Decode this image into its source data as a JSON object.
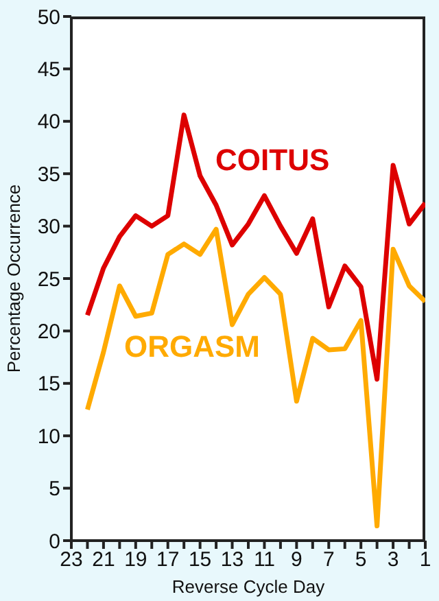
{
  "chart_data": {
    "type": "line",
    "xlabel": "Reverse Cycle Day",
    "ylabel": "Percentage Occurrence",
    "x": [
      22,
      21,
      20,
      19,
      18,
      17,
      16,
      15,
      14,
      13,
      12,
      11,
      10,
      9,
      8,
      7,
      6,
      5,
      4,
      3,
      2,
      1
    ],
    "series": [
      {
        "name": "COITUS",
        "color": "#dd0000",
        "values": [
          21.5,
          26,
          29,
          31,
          30,
          31,
          40.6,
          34.8,
          32,
          28.2,
          30.2,
          32.9,
          30,
          27.4,
          30.7,
          22.3,
          26.2,
          24.2,
          15.4,
          35.8,
          30.2,
          32.2
        ]
      },
      {
        "name": "ORGASM",
        "color": "#ffaa00",
        "values": [
          12.5,
          18,
          24.3,
          21.4,
          21.7,
          27.3,
          28.3,
          27.3,
          29.7,
          20.6,
          23.5,
          25.1,
          23.5,
          13.3,
          19.3,
          18.2,
          18.3,
          21,
          1.4,
          27.8,
          24.3,
          22.8
        ]
      }
    ],
    "xlim": [
      23,
      1
    ],
    "xticks": [
      23,
      {
        "value": 22,
        "label": null
      },
      21,
      {
        "value": 20,
        "label": null
      },
      19,
      {
        "value": 18,
        "label": null
      },
      17,
      {
        "value": 16,
        "label": null
      },
      15,
      {
        "value": 14,
        "label": null
      },
      13,
      {
        "value": 12,
        "label": null
      },
      11,
      {
        "value": 10,
        "label": null
      },
      9,
      {
        "value": 8,
        "label": null
      },
      7,
      {
        "value": 6,
        "label": null
      },
      5,
      {
        "value": 4,
        "label": null
      },
      3,
      {
        "value": 2,
        "label": null
      },
      1
    ],
    "ylim": [
      0,
      50
    ],
    "yticks": [
      0,
      5,
      10,
      15,
      20,
      25,
      30,
      35,
      40,
      45,
      50
    ],
    "grid": false,
    "legend": false,
    "marker": "none",
    "line_style": "solid"
  }
}
